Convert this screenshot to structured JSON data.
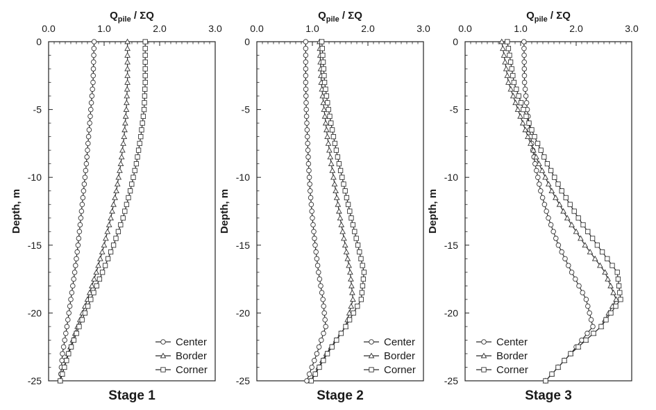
{
  "chart_data": [
    {
      "type": "line",
      "title": "Stage 1",
      "xlabel": "Q",
      "xlabel_sub": "pile",
      "xlabel_rest": " / ΣQ",
      "ylabel": "Depth, m",
      "xlim": [
        0,
        3
      ],
      "ylim": [
        -25,
        0
      ],
      "xticks": [
        "0.0",
        "1.0",
        "2.0",
        "3.0"
      ],
      "yticks": [
        "0",
        "-5",
        "-10",
        "-15",
        "-20",
        "-25"
      ],
      "xaxis_position": "top",
      "legend_position": "bottom-right",
      "grid": false,
      "series": [
        {
          "name": "Center",
          "marker": "circle",
          "x": [
            0.82,
            0.8,
            0.76,
            0.72,
            0.68,
            0.63,
            0.58,
            0.53,
            0.47,
            0.4,
            0.33,
            0.25,
            0.21
          ],
          "y": [
            0,
            -3,
            -5,
            -7,
            -9,
            -11,
            -13,
            -15,
            -17,
            -19,
            -21,
            -23,
            -25
          ]
        },
        {
          "name": "Border",
          "marker": "triangle",
          "x": [
            1.42,
            1.42,
            1.4,
            1.36,
            1.3,
            1.22,
            1.12,
            1.0,
            0.86,
            0.7,
            0.52,
            0.35,
            0.21
          ],
          "y": [
            0,
            -3,
            -5,
            -7,
            -9,
            -11,
            -13,
            -15,
            -17,
            -19,
            -21,
            -23,
            -25
          ]
        },
        {
          "name": "Corner",
          "marker": "square",
          "x": [
            1.74,
            1.74,
            1.72,
            1.66,
            1.58,
            1.47,
            1.34,
            1.17,
            0.97,
            0.76,
            0.55,
            0.36,
            0.21
          ],
          "y": [
            0,
            -3,
            -5,
            -7,
            -9,
            -11,
            -13,
            -15,
            -17,
            -19,
            -21,
            -23,
            -25
          ]
        }
      ]
    },
    {
      "type": "line",
      "title": "Stage 2",
      "xlabel": "Q",
      "xlabel_sub": "pile",
      "xlabel_rest": " / ΣQ",
      "ylabel": "Depth, m",
      "xlim": [
        0,
        3
      ],
      "ylim": [
        -25,
        0
      ],
      "xticks": [
        "0.0",
        "1.0",
        "2.0",
        "3.0"
      ],
      "yticks": [
        "0",
        "-5",
        "-10",
        "-15",
        "-20",
        "-25"
      ],
      "xaxis_position": "top",
      "legend_position": "bottom-right",
      "grid": false,
      "series": [
        {
          "name": "Center",
          "marker": "circle",
          "x": [
            0.88,
            0.88,
            0.89,
            0.91,
            0.93,
            0.96,
            1.0,
            1.05,
            1.11,
            1.19,
            1.24,
            1.08,
            0.9
          ],
          "y": [
            0,
            -3,
            -5,
            -7,
            -9,
            -11,
            -13,
            -15,
            -17,
            -19,
            -21,
            -23,
            -25
          ]
        },
        {
          "name": "Border",
          "marker": "triangle",
          "x": [
            1.13,
            1.16,
            1.21,
            1.27,
            1.34,
            1.42,
            1.5,
            1.59,
            1.68,
            1.73,
            1.6,
            1.25,
            0.97
          ],
          "y": [
            0,
            -3,
            -5,
            -7,
            -9,
            -11,
            -13,
            -15,
            -17,
            -19,
            -21,
            -23,
            -25
          ]
        },
        {
          "name": "Corner",
          "marker": "square",
          "x": [
            1.17,
            1.22,
            1.29,
            1.38,
            1.48,
            1.59,
            1.7,
            1.82,
            1.93,
            1.88,
            1.6,
            1.27,
            0.98
          ],
          "y": [
            0,
            -3,
            -5,
            -7,
            -9,
            -11,
            -13,
            -15,
            -17,
            -19,
            -21,
            -23,
            -25
          ]
        }
      ]
    },
    {
      "type": "line",
      "title": "Stage 3",
      "xlabel": "Q",
      "xlabel_sub": "pile",
      "xlabel_rest": " / ΣQ",
      "ylabel": "Depth, m",
      "xlim": [
        0,
        3
      ],
      "ylim": [
        -25,
        0
      ],
      "xticks": [
        "0.0",
        "1.0",
        "2.0",
        "3.0"
      ],
      "yticks": [
        "0",
        "-5",
        "-10",
        "-15",
        "-20",
        "-25"
      ],
      "xaxis_position": "top",
      "legend_position": "bottom-left",
      "grid": false,
      "series": [
        {
          "name": "Center",
          "marker": "circle",
          "x": [
            1.06,
            1.07,
            1.12,
            1.18,
            1.26,
            1.36,
            1.5,
            1.68,
            1.92,
            2.18,
            2.3,
            1.9,
            1.45
          ],
          "y": [
            0,
            -3,
            -5,
            -7,
            -9,
            -11,
            -13,
            -15,
            -17,
            -19,
            -21,
            -23,
            -25
          ]
        },
        {
          "name": "Border",
          "marker": "triangle",
          "x": [
            0.66,
            0.78,
            0.95,
            1.13,
            1.33,
            1.56,
            1.84,
            2.16,
            2.52,
            2.72,
            2.45,
            1.9,
            1.45
          ],
          "y": [
            0,
            -3,
            -5,
            -7,
            -9,
            -11,
            -13,
            -15,
            -17,
            -19,
            -21,
            -23,
            -25
          ]
        },
        {
          "name": "Corner",
          "marker": "square",
          "x": [
            0.76,
            0.88,
            1.05,
            1.25,
            1.48,
            1.74,
            2.04,
            2.38,
            2.74,
            2.8,
            2.45,
            1.9,
            1.45
          ],
          "y": [
            0,
            -3,
            -5,
            -7,
            -9,
            -11,
            -13,
            -15,
            -17,
            -19,
            -21,
            -23,
            -25
          ]
        }
      ]
    }
  ]
}
